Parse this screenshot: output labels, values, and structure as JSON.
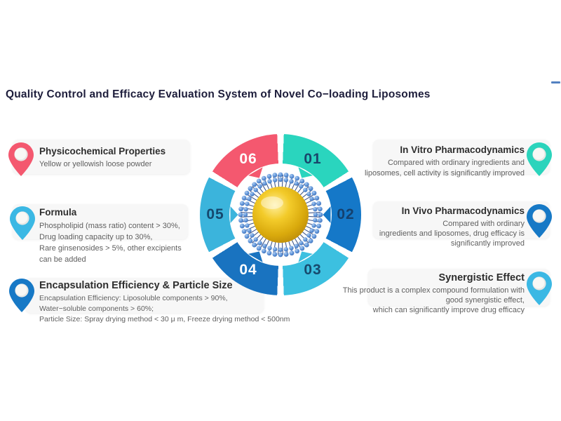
{
  "title": "Quality Control and Efficacy Evaluation System of Novel Co−loading Liposomes",
  "left_callouts": [
    {
      "title": "Physicochemical Properties",
      "lines": [
        "Yellow or yellowish loose powder"
      ],
      "pin_color": "#f4586f"
    },
    {
      "title": "Formula",
      "lines": [
        "Phospholipid (mass ratio) content > 30%,",
        "Drug loading capacity up to 30%,",
        "Rare ginsenosides > 5%, other excipients",
        "can be added"
      ],
      "pin_color": "#3bb8e4"
    },
    {
      "title": "Encapsulation Efficiency & Particle Size",
      "lines": [
        "Encapsulation Efficiency: Liposoluble components > 90%,",
        "Water−soluble components > 60%;",
        "Particle Size: Spray drying method < 30 μ m, Freeze drying method < 500nm"
      ],
      "pin_color": "#1779c6"
    }
  ],
  "right_callouts": [
    {
      "title": "In Vitro Pharmacodynamics",
      "lines": [
        "Compared with ordinary ingredients and",
        "liposomes, cell activity is significantly improved"
      ],
      "pin_color": "#2bd4bc"
    },
    {
      "title": "In Vivo Pharmacodynamics",
      "lines": [
        "Compared with ordinary",
        "ingredients and liposomes, drug efficacy is",
        "significantly improved"
      ],
      "pin_color": "#1779c6"
    },
    {
      "title": "Synergistic Effect",
      "lines": [
        "This product is a complex compound formulation with",
        "good synergistic effect,",
        "which can significantly improve drug efficacy"
      ],
      "pin_color": "#3bb8e4"
    }
  ],
  "ring": {
    "segments": [
      {
        "number": "01",
        "color": "#2ad5be",
        "text_color": "#19466b"
      },
      {
        "number": "02",
        "color": "#1578c8",
        "text_color": "#14406e"
      },
      {
        "number": "03",
        "color": "#3cc0e0",
        "text_color": "#174a6e"
      },
      {
        "number": "04",
        "color": "#1973c0",
        "text_color": "#ffffff"
      },
      {
        "number": "05",
        "color": "#3bb4dc",
        "text_color": "#15486e"
      },
      {
        "number": "06",
        "color": "#f4586f",
        "text_color": "#ffffff"
      }
    ]
  },
  "center_icon": "liposome"
}
